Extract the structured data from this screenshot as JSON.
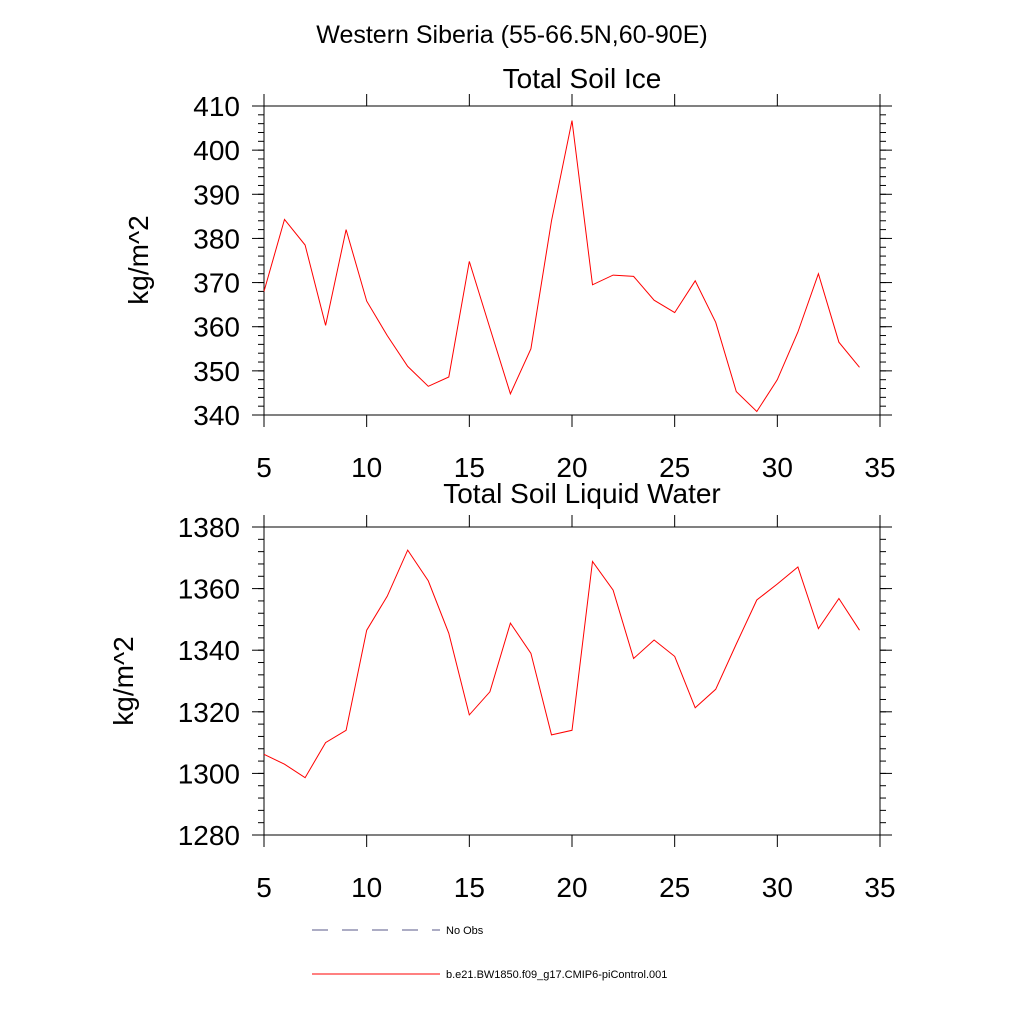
{
  "figure_title": "Western Siberia (55-66.5N,60-90E)",
  "colors": {
    "model_line": "#ff0000",
    "obs_line": "#5a5a8a",
    "axis": "#000000"
  },
  "legend": {
    "obs_label": "No Obs",
    "model_label": "b.e21.BW1850.f09_g17.CMIP6-piControl.001"
  },
  "chart_data": [
    {
      "type": "line",
      "title": "Total Soil Ice",
      "xlabel": "",
      "ylabel": "kg/m^2",
      "xlim": [
        5,
        35
      ],
      "ylim": [
        340,
        410
      ],
      "xticks": [
        5,
        10,
        15,
        20,
        25,
        30,
        35
      ],
      "yticks": [
        340,
        350,
        360,
        370,
        380,
        390,
        400,
        410
      ],
      "series": [
        {
          "name": "b.e21.BW1850.f09_g17.CMIP6-piControl.001",
          "x": [
            5,
            6,
            7,
            8,
            9,
            10,
            11,
            12,
            13,
            14,
            15,
            16,
            17,
            18,
            19,
            20,
            21,
            22,
            23,
            24,
            25,
            26,
            27,
            28,
            29,
            30,
            31,
            32,
            33,
            34
          ],
          "values": [
            368,
            384.3,
            378.5,
            360.3,
            382,
            365.8,
            358,
            351,
            346.5,
            348.6,
            374.8,
            359.7,
            344.8,
            355,
            384,
            406.7,
            369.5,
            371.7,
            371.4,
            366,
            363.2,
            370.4,
            361,
            345.3,
            340.8,
            348,
            358.8,
            372,
            356.5,
            350.8
          ]
        }
      ]
    },
    {
      "type": "line",
      "title": "Total Soil Liquid Water",
      "xlabel": "",
      "ylabel": "kg/m^2",
      "xlim": [
        5,
        35
      ],
      "ylim": [
        1280,
        1380
      ],
      "xticks": [
        5,
        10,
        15,
        20,
        25,
        30,
        35
      ],
      "yticks": [
        1280,
        1300,
        1320,
        1340,
        1360,
        1380
      ],
      "series": [
        {
          "name": "b.e21.BW1850.f09_g17.CMIP6-piControl.001",
          "x": [
            5,
            6,
            7,
            8,
            9,
            10,
            11,
            12,
            13,
            14,
            15,
            16,
            17,
            18,
            19,
            20,
            21,
            22,
            23,
            24,
            25,
            26,
            27,
            28,
            29,
            30,
            31,
            32,
            33,
            34
          ],
          "values": [
            1306.2,
            1303,
            1298.6,
            1310,
            1314,
            1346.5,
            1357.5,
            1372.5,
            1362.5,
            1345.5,
            1319,
            1326.5,
            1348.8,
            1339,
            1312.5,
            1314,
            1368.8,
            1359.5,
            1337.3,
            1343.3,
            1338,
            1321.3,
            1327.3,
            1342,
            1356.3,
            1361.5,
            1367,
            1347,
            1356.8,
            1346.5
          ]
        }
      ]
    }
  ]
}
